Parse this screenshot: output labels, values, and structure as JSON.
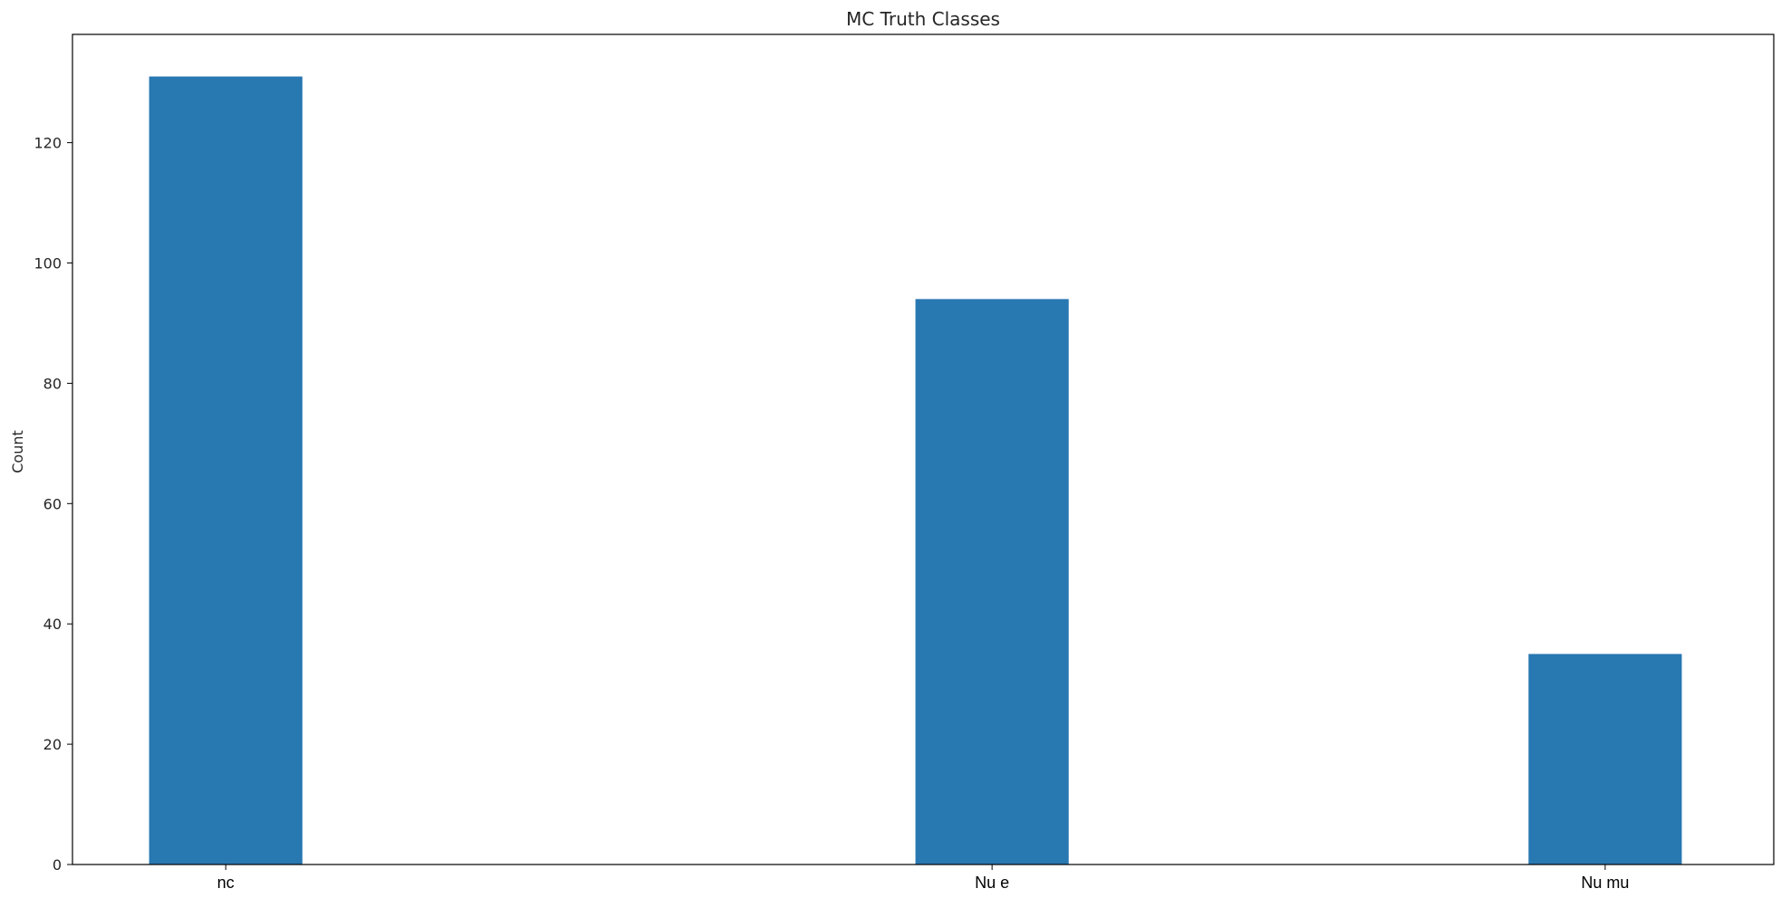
{
  "chart_data": {
    "type": "bar",
    "title": "MC Truth Classes",
    "xlabel": "",
    "ylabel": "Count",
    "categories": [
      "nc",
      "Nu e",
      "Nu mu"
    ],
    "category_positions": [
      0.0,
      2.5,
      4.5
    ],
    "values": [
      131,
      94,
      35
    ],
    "bar_width": 0.5,
    "xlim": [
      -0.5,
      5.05
    ],
    "ylim": [
      0,
      138
    ],
    "yticks": [
      0,
      20,
      40,
      60,
      80,
      100,
      120
    ],
    "bar_color": "#2878b2",
    "grid": false,
    "legend": "none"
  }
}
